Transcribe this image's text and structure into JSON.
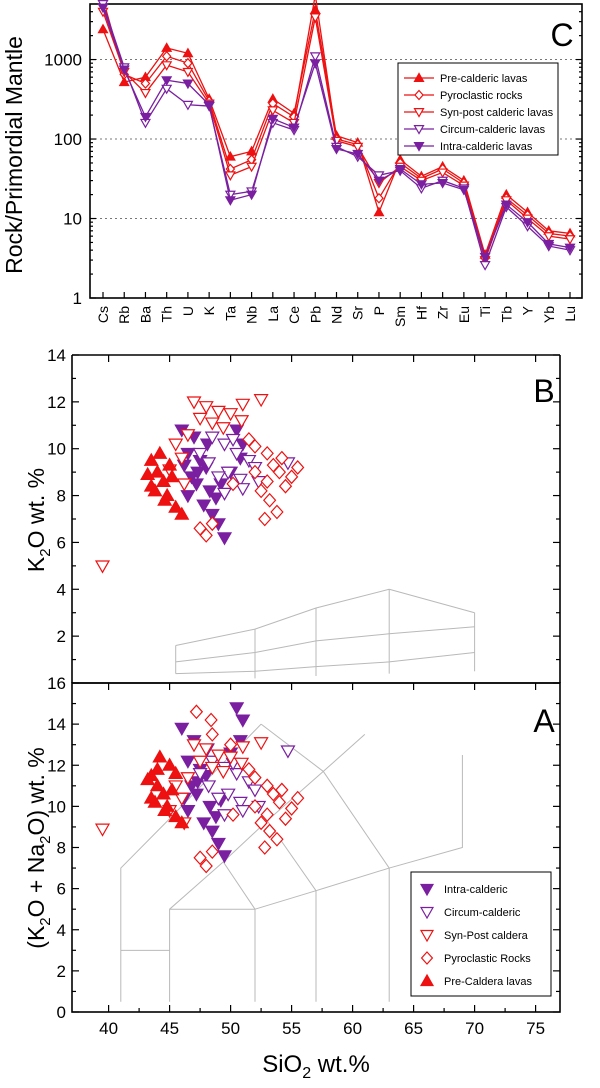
{
  "chart_data": [
    {
      "panel": "C",
      "type": "line",
      "yscale": "log",
      "ylabel": "Rock/Primordial Mantle",
      "ylim": [
        1,
        5000
      ],
      "yticks": [
        1,
        10,
        100,
        1000
      ],
      "ytick_labels": [
        "1",
        "10",
        "100",
        "1000"
      ],
      "gridlines_at": [
        10,
        100,
        1000
      ],
      "legend_position": "top-right",
      "categories": [
        "Cs",
        "Rb",
        "Ba",
        "Th",
        "U",
        "K",
        "Ta",
        "Nb",
        "La",
        "Ce",
        "Pb",
        "Nd",
        "Sr",
        "P",
        "Sm",
        "Hf",
        "Zr",
        "Eu",
        "Ti",
        "Tb",
        "Y",
        "Yb",
        "Lu"
      ],
      "series": [
        {
          "name": "Pre-calderic lavas",
          "marker": "triangle-up",
          "filled": true,
          "color": "#ee1111",
          "values": [
            2400,
            520,
            600,
            1400,
            1200,
            320,
            60,
            70,
            320,
            210,
            4200,
            110,
            90,
            12,
            55,
            34,
            45,
            30,
            3.5,
            20,
            12,
            7,
            6.5
          ]
        },
        {
          "name": "Pyroclastic rocks",
          "marker": "diamond",
          "filled": false,
          "color": "#ee1111",
          "values": [
            5800,
            650,
            500,
            1100,
            900,
            300,
            42,
            55,
            280,
            190,
            6500,
            100,
            85,
            18,
            50,
            32,
            42,
            28,
            3.2,
            18,
            11,
            6.5,
            6
          ]
        },
        {
          "name": "Syn-post calderic lavas",
          "marker": "triangle-down",
          "filled": false,
          "color": "#ee1111",
          "values": [
            4000,
            700,
            380,
            850,
            700,
            280,
            35,
            45,
            230,
            160,
            3400,
            95,
            80,
            28,
            45,
            30,
            38,
            26,
            3,
            17,
            10,
            6,
            5.5
          ]
        },
        {
          "name": "Circum-calderic lavas",
          "marker": "triangle-down",
          "filled": false,
          "color": "#7a1fa0",
          "values": [
            5000,
            800,
            160,
            430,
            270,
            260,
            20,
            22,
            160,
            130,
            1100,
            80,
            60,
            35,
            40,
            24,
            30,
            24,
            2.6,
            14,
            8,
            4.5,
            4
          ]
        },
        {
          "name": "Intra-calderic lavas",
          "marker": "triangle-down",
          "filled": true,
          "color": "#7a1fa0",
          "values": [
            4500,
            750,
            190,
            550,
            500,
            270,
            17,
            20,
            180,
            140,
            900,
            75,
            65,
            30,
            42,
            27,
            28,
            23,
            3.3,
            15,
            9,
            4.8,
            4.3
          ]
        }
      ]
    },
    {
      "panel": "B",
      "type": "scatter",
      "ylabel_main": "K",
      "ylabel_sub": "2",
      "ylabel_rest": "O   wt. %",
      "xlim": [
        37,
        77
      ],
      "ylim": [
        0,
        14
      ],
      "yticks": [
        2,
        4,
        6,
        8,
        10,
        12,
        14
      ],
      "ytick_labels": [
        "2",
        "4",
        "6",
        "8",
        "10",
        "12",
        "14"
      ],
      "series": [
        {
          "name": "Intra-calderic",
          "marker": "triangle-down",
          "filled": true,
          "color": "#7a1fa0",
          "points": [
            [
              46,
              10.8
            ],
            [
              47,
              10.5
            ],
            [
              46.5,
              9.8
            ],
            [
              47.5,
              9.5
            ],
            [
              48,
              9.2
            ],
            [
              46.8,
              8.8
            ],
            [
              47.2,
              8.5
            ],
            [
              48.3,
              8.2
            ],
            [
              46.5,
              8.0
            ],
            [
              47.8,
              7.6
            ],
            [
              48.5,
              7.2
            ],
            [
              49,
              6.8
            ],
            [
              49.5,
              6.2
            ],
            [
              48.8,
              7.9
            ],
            [
              47.3,
              9.0
            ],
            [
              46.2,
              9.3
            ],
            [
              50.5,
              10.8
            ],
            [
              51,
              10.2
            ],
            [
              50.8,
              9.6
            ],
            [
              50,
              9.0
            ],
            [
              48.1,
              10.2
            ],
            [
              49.2,
              8.5
            ]
          ]
        },
        {
          "name": "Circum-calderic",
          "marker": "triangle-down",
          "filled": false,
          "color": "#7a1fa0",
          "points": [
            [
              48.5,
              10.5
            ],
            [
              49.5,
              10.2
            ],
            [
              50.5,
              9.8
            ],
            [
              51.5,
              9.5
            ],
            [
              52,
              9.2
            ],
            [
              49.8,
              9.0
            ],
            [
              50.8,
              8.7
            ],
            [
              49,
              8.8
            ],
            [
              48.2,
              9.4
            ],
            [
              47.5,
              9.8
            ],
            [
              51,
              8.3
            ],
            [
              49.5,
              8.1
            ],
            [
              54.7,
              9.4
            ],
            [
              50.2,
              10.4
            ],
            [
              52.3,
              8.6
            ]
          ]
        },
        {
          "name": "Syn-Post caldera",
          "marker": "triangle-down",
          "filled": false,
          "color": "#ee1111",
          "points": [
            [
              47,
              12
            ],
            [
              48,
              11.8
            ],
            [
              49,
              11.6
            ],
            [
              51,
              11.9
            ],
            [
              52.5,
              12.1
            ],
            [
              47.5,
              11.3
            ],
            [
              48.5,
              11.1
            ],
            [
              46.5,
              10.6
            ],
            [
              45.5,
              10.2
            ],
            [
              46,
              9.6
            ],
            [
              45,
              9.1
            ],
            [
              46.2,
              8.5
            ],
            [
              39.5,
              5.0
            ],
            [
              50,
              11.5
            ],
            [
              49.4,
              10.9
            ],
            [
              50.9,
              11.2
            ]
          ]
        },
        {
          "name": "Pyroclastic Rocks",
          "marker": "diamond",
          "filled": false,
          "color": "#ee1111",
          "points": [
            [
              52,
              10.1
            ],
            [
              53,
              9.8
            ],
            [
              53.5,
              9.3
            ],
            [
              54,
              9.0
            ],
            [
              55,
              8.8
            ],
            [
              53,
              8.6
            ],
            [
              52.5,
              8.2
            ],
            [
              53.2,
              7.8
            ],
            [
              54.5,
              8.4
            ],
            [
              55.5,
              9.2
            ],
            [
              53.8,
              7.3
            ],
            [
              52.8,
              7.0
            ],
            [
              54.2,
              9.6
            ],
            [
              51.5,
              10.4
            ],
            [
              47.5,
              6.6
            ],
            [
              48,
              6.3
            ],
            [
              48.5,
              6.8
            ],
            [
              50.2,
              8.5
            ],
            [
              52,
              9.0
            ]
          ]
        },
        {
          "name": "Pre-Caldera lavas",
          "marker": "triangle-up",
          "filled": true,
          "color": "#ee1111",
          "points": [
            [
              43.5,
              9.5
            ],
            [
              44,
              9.0
            ],
            [
              44.5,
              8.6
            ],
            [
              43.8,
              8.2
            ],
            [
              44.6,
              7.8
            ],
            [
              45.2,
              8.8
            ],
            [
              44.2,
              9.8
            ],
            [
              43.5,
              8.4
            ],
            [
              45,
              9.3
            ],
            [
              44.8,
              8.0
            ],
            [
              45.5,
              7.5
            ],
            [
              46,
              7.2
            ],
            [
              43.2,
              8.9
            ]
          ]
        }
      ],
      "fields": "classification-grid"
    },
    {
      "panel": "A",
      "type": "scatter",
      "xlabel_main": "SiO",
      "xlabel_sub": "2",
      "xlabel_rest": "  wt.%",
      "ylabel_pre": "(K",
      "ylabel_sub1": "2",
      "ylabel_mid": "O + Na",
      "ylabel_sub2": "2",
      "ylabel_rest": "O)   wt. %",
      "xlim": [
        37,
        77
      ],
      "ylim": [
        0,
        16
      ],
      "xticks": [
        40,
        45,
        50,
        55,
        60,
        65,
        70,
        75
      ],
      "xtick_labels": [
        "40",
        "45",
        "50",
        "55",
        "60",
        "65",
        "70",
        "75"
      ],
      "yticks": [
        0,
        2,
        4,
        6,
        8,
        10,
        12,
        14,
        16
      ],
      "ytick_labels": [
        "0",
        "2",
        "4",
        "6",
        "8",
        "10",
        "12",
        "14",
        "16"
      ],
      "legend_position": "bottom-right",
      "series": [
        {
          "name": "Intra-calderic",
          "marker": "triangle-down",
          "filled": true,
          "color": "#7a1fa0",
          "points": [
            [
              46,
              13.8
            ],
            [
              47,
              13.2
            ],
            [
              46.5,
              12.2
            ],
            [
              47.5,
              11.8
            ],
            [
              48,
              11.5
            ],
            [
              46.8,
              11.0
            ],
            [
              47.2,
              10.6
            ],
            [
              48.3,
              10.0
            ],
            [
              46.5,
              9.8
            ],
            [
              47.8,
              9.2
            ],
            [
              48.5,
              8.8
            ],
            [
              49,
              8.2
            ],
            [
              49.5,
              7.6
            ],
            [
              48.8,
              9.5
            ],
            [
              47.3,
              11.2
            ],
            [
              46.2,
              10.4
            ],
            [
              50.5,
              14.8
            ],
            [
              51,
              14.2
            ],
            [
              50.8,
              13.2
            ],
            [
              50,
              12.6
            ],
            [
              48.1,
              12.8
            ],
            [
              49.2,
              10.3
            ]
          ]
        },
        {
          "name": "Circum-calderic",
          "marker": "triangle-down",
          "filled": false,
          "color": "#7a1fa0",
          "points": [
            [
              48.5,
              12.2
            ],
            [
              49.5,
              11.9
            ],
            [
              50.5,
              11.6
            ],
            [
              51.5,
              11.2
            ],
            [
              52,
              10.8
            ],
            [
              49.8,
              10.6
            ],
            [
              50.8,
              10.2
            ],
            [
              49,
              10.4
            ],
            [
              48.2,
              11.0
            ],
            [
              47.5,
              11.6
            ],
            [
              51,
              9.8
            ],
            [
              49.5,
              9.6
            ],
            [
              54.7,
              12.7
            ],
            [
              50.2,
              12.1
            ],
            [
              52.3,
              10.0
            ]
          ]
        },
        {
          "name": "Syn-Post caldera",
          "marker": "triangle-down",
          "filled": false,
          "color": "#ee1111",
          "points": [
            [
              47,
              13.0
            ],
            [
              48,
              12.8
            ],
            [
              49,
              12.5
            ],
            [
              51,
              12.9
            ],
            [
              52.5,
              13.1
            ],
            [
              47.5,
              12.2
            ],
            [
              48.5,
              11.9
            ],
            [
              46.5,
              11.4
            ],
            [
              45.5,
              11.0
            ],
            [
              46,
              10.4
            ],
            [
              45,
              9.8
            ],
            [
              46.2,
              9.2
            ],
            [
              39.5,
              8.9
            ],
            [
              50,
              12.4
            ],
            [
              49.4,
              11.7
            ],
            [
              50.9,
              12.1
            ]
          ]
        },
        {
          "name": "Pyroclastic Rocks",
          "marker": "diamond",
          "filled": false,
          "color": "#ee1111",
          "points": [
            [
              52,
              11.4
            ],
            [
              53,
              11.0
            ],
            [
              53.5,
              10.6
            ],
            [
              54,
              10.2
            ],
            [
              55,
              9.9
            ],
            [
              53,
              9.6
            ],
            [
              52.5,
              9.2
            ],
            [
              53.2,
              8.8
            ],
            [
              54.5,
              9.4
            ],
            [
              55.5,
              10.4
            ],
            [
              53.8,
              8.4
            ],
            [
              52.8,
              8.0
            ],
            [
              54.2,
              10.8
            ],
            [
              51.5,
              11.8
            ],
            [
              47.5,
              7.5
            ],
            [
              48,
              7.1
            ],
            [
              48.5,
              7.8
            ],
            [
              50.2,
              9.6
            ],
            [
              52,
              10.0
            ],
            [
              47.2,
              14.6
            ],
            [
              48.4,
              14.2
            ],
            [
              48.5,
              13.5
            ],
            [
              50,
              13.0
            ]
          ]
        },
        {
          "name": "Pre-Caldera lavas",
          "marker": "triangle-up",
          "filled": true,
          "color": "#ee1111",
          "points": [
            [
              43.5,
              11.5
            ],
            [
              44,
              11.0
            ],
            [
              44.5,
              10.6
            ],
            [
              43.8,
              10.2
            ],
            [
              44.6,
              9.8
            ],
            [
              45.2,
              10.8
            ],
            [
              44.2,
              12.4
            ],
            [
              43.5,
              10.4
            ],
            [
              45,
              12.0
            ],
            [
              44.8,
              10.0
            ],
            [
              45.5,
              9.5
            ],
            [
              46,
              9.2
            ],
            [
              43.2,
              11.3
            ],
            [
              44,
              11.8
            ],
            [
              45.5,
              11.6
            ]
          ]
        }
      ],
      "fields": "TAS"
    }
  ]
}
